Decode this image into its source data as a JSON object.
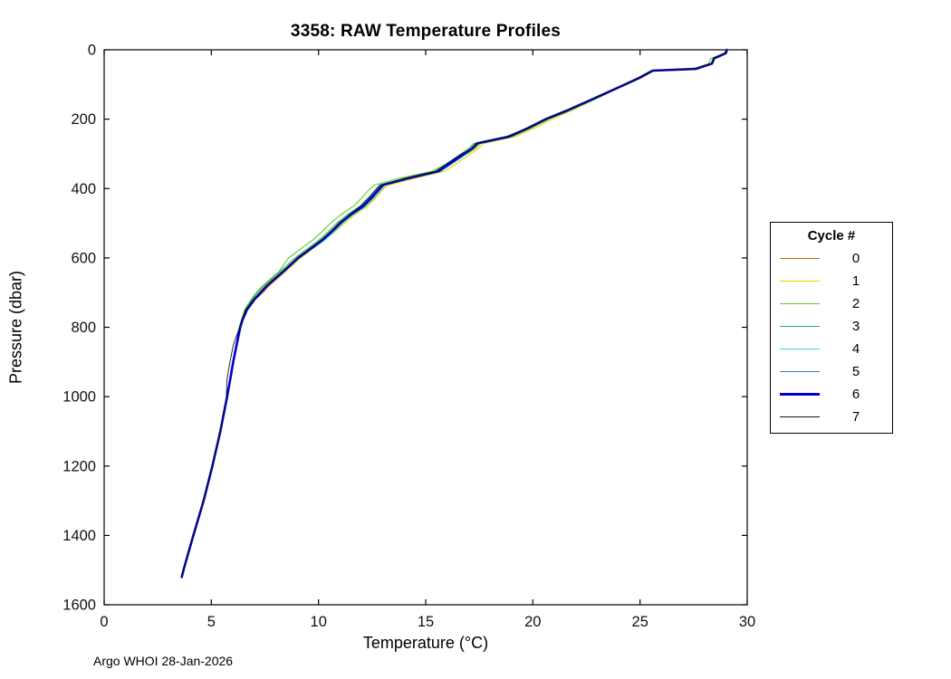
{
  "footer": "Argo WHOI 28-Jan-2026",
  "chart_data": {
    "type": "line",
    "title": "3358: RAW Temperature Profiles",
    "xlabel": "Temperature (°C)",
    "ylabel": "Pressure (dbar)",
    "xlim": [
      0,
      30
    ],
    "ylim": [
      0,
      1600
    ],
    "y_axis_reversed": true,
    "grid": false,
    "legend_title": "Cycle #",
    "legend_position": "outside-right",
    "xticks": [
      0,
      5,
      10,
      15,
      20,
      25,
      30
    ],
    "yticks": [
      0,
      200,
      400,
      600,
      800,
      1000,
      1200,
      1400,
      1600
    ],
    "pressures_dbar": [
      0,
      10,
      25,
      40,
      55,
      60,
      80,
      100,
      125,
      150,
      175,
      200,
      225,
      250,
      270,
      285,
      300,
      325,
      350,
      370,
      390,
      400,
      425,
      450,
      475,
      500,
      525,
      550,
      575,
      600,
      640,
      680,
      700,
      720,
      750,
      780,
      800,
      850,
      900,
      950,
      1000,
      1100,
      1200,
      1300,
      1400,
      1450,
      1500,
      1520
    ],
    "series": [
      {
        "name": "0",
        "color": "#cc6600",
        "line_width": 1.1,
        "temps": [
          29.05,
          29.0,
          28.45,
          28.35,
          27.6,
          25.6,
          25.0,
          24.3,
          23.4,
          22.6,
          21.7,
          20.7,
          19.9,
          19.0,
          17.5,
          17.25,
          16.9,
          16.3,
          15.7,
          14.3,
          13.1,
          12.95,
          12.6,
          12.2,
          11.6,
          11.1,
          10.7,
          10.25,
          9.7,
          9.15,
          8.45,
          7.7,
          7.4,
          7.05,
          6.7,
          6.48,
          6.37,
          6.19,
          6.03,
          5.89,
          5.75,
          5.43,
          5.06,
          4.65,
          4.17,
          3.94,
          3.71,
          3.63
        ]
      },
      {
        "name": "1",
        "color": "#e8d000",
        "line_width": 1.1,
        "temps": [
          29.1,
          29.05,
          28.5,
          28.4,
          27.65,
          25.65,
          25.05,
          24.35,
          23.5,
          22.65,
          21.8,
          20.9,
          20.1,
          19.2,
          17.7,
          17.45,
          17.1,
          16.5,
          15.9,
          14.5,
          13.3,
          13.05,
          12.7,
          12.3,
          11.7,
          11.2,
          10.75,
          10.25,
          9.7,
          9.15,
          8.45,
          7.65,
          7.35,
          7.0,
          6.65,
          6.45,
          6.35,
          6.18,
          6.02,
          5.88,
          5.74,
          5.42,
          5.05,
          4.64,
          4.16,
          3.93,
          3.7,
          3.62
        ]
      },
      {
        "name": "2",
        "color": "#5ecb23",
        "line_width": 1.1,
        "temps": [
          29.0,
          28.95,
          28.3,
          28.2,
          27.45,
          25.5,
          24.9,
          24.25,
          23.5,
          22.65,
          21.75,
          20.75,
          19.95,
          19.05,
          17.55,
          17.3,
          16.95,
          16.1,
          15.3,
          13.8,
          12.6,
          12.4,
          12.05,
          11.65,
          11.05,
          10.55,
          10.15,
          9.7,
          9.15,
          8.6,
          8.15,
          7.4,
          7.1,
          6.85,
          6.55,
          6.4,
          6.3,
          6.15,
          6.0,
          5.87,
          5.73,
          5.41,
          5.05,
          4.64,
          4.16,
          3.93,
          3.7,
          3.62
        ]
      },
      {
        "name": "3",
        "color": "#22b366",
        "line_width": 1.1,
        "temps": [
          29.03,
          28.98,
          28.42,
          28.32,
          27.57,
          25.57,
          24.97,
          24.27,
          23.37,
          22.47,
          21.57,
          20.57,
          19.77,
          18.75,
          17.25,
          17.0,
          16.65,
          16.05,
          15.45,
          14.05,
          12.85,
          12.7,
          12.35,
          11.95,
          11.35,
          10.85,
          10.45,
          10.0,
          9.45,
          8.9,
          8.2,
          7.45,
          7.15,
          6.9,
          6.58,
          6.4,
          6.31,
          6.15,
          6.0,
          5.86,
          5.72,
          5.41,
          5.04,
          4.63,
          4.15,
          3.92,
          3.69,
          3.61
        ]
      },
      {
        "name": "4",
        "color": "#38d6cc",
        "line_width": 1.1,
        "temps": [
          29.06,
          29.01,
          28.46,
          28.36,
          27.61,
          25.61,
          25.01,
          24.31,
          23.41,
          22.51,
          21.61,
          20.61,
          19.81,
          18.91,
          17.41,
          17.16,
          16.92,
          16.32,
          15.72,
          14.32,
          13.12,
          12.97,
          12.62,
          12.22,
          11.62,
          11.12,
          10.72,
          10.27,
          9.65,
          9.08,
          8.37,
          7.62,
          7.31,
          7.01,
          6.66,
          6.46,
          6.36,
          6.19,
          6.03,
          5.89,
          5.75,
          5.43,
          5.06,
          4.65,
          4.17,
          3.94,
          3.71,
          3.63
        ]
      },
      {
        "name": "5",
        "color": "#2e7bd6",
        "line_width": 1.1,
        "temps": [
          29.04,
          28.99,
          28.44,
          28.34,
          27.59,
          25.59,
          24.99,
          24.29,
          23.39,
          22.45,
          21.55,
          20.55,
          19.75,
          18.85,
          17.35,
          17.1,
          16.75,
          16.15,
          15.55,
          14.15,
          12.95,
          12.8,
          12.45,
          12.05,
          11.45,
          10.95,
          10.55,
          10.1,
          9.55,
          9.0,
          8.3,
          7.55,
          7.25,
          6.97,
          6.62,
          6.43,
          6.33,
          6.17,
          6.01,
          5.87,
          5.73,
          5.41,
          5.04,
          4.63,
          4.15,
          3.92,
          3.69,
          3.61
        ]
      },
      {
        "name": "6",
        "color": "#0000cc",
        "line_width": 2.6,
        "temps": [
          29.05,
          29.0,
          28.45,
          28.35,
          27.6,
          25.6,
          25.0,
          24.3,
          23.4,
          22.5,
          21.6,
          20.6,
          19.8,
          18.9,
          17.4,
          17.15,
          16.8,
          16.2,
          15.6,
          14.2,
          13.0,
          12.85,
          12.5,
          12.1,
          11.5,
          11.0,
          10.6,
          10.15,
          9.6,
          9.05,
          8.35,
          7.6,
          7.3,
          7.0,
          6.65,
          6.45,
          6.35,
          6.18,
          6.02,
          5.88,
          5.74,
          5.42,
          5.05,
          4.64,
          4.16,
          3.93,
          3.7,
          3.62
        ]
      },
      {
        "name": "7",
        "color": "#111111",
        "line_width": 0.9,
        "temps": [
          29.05,
          29.0,
          28.45,
          28.35,
          27.6,
          25.6,
          25.0,
          24.3,
          23.4,
          22.5,
          21.6,
          20.6,
          19.8,
          18.9,
          17.4,
          17.15,
          16.68,
          16.08,
          15.48,
          14.08,
          12.88,
          12.73,
          12.38,
          11.98,
          11.45,
          10.95,
          10.55,
          10.1,
          9.55,
          9.0,
          8.3,
          7.55,
          7.25,
          6.95,
          6.6,
          6.42,
          6.32,
          6.03,
          5.87,
          5.73,
          5.7,
          5.4,
          5.04,
          4.63,
          4.15,
          3.92,
          3.69,
          3.61
        ]
      }
    ]
  }
}
